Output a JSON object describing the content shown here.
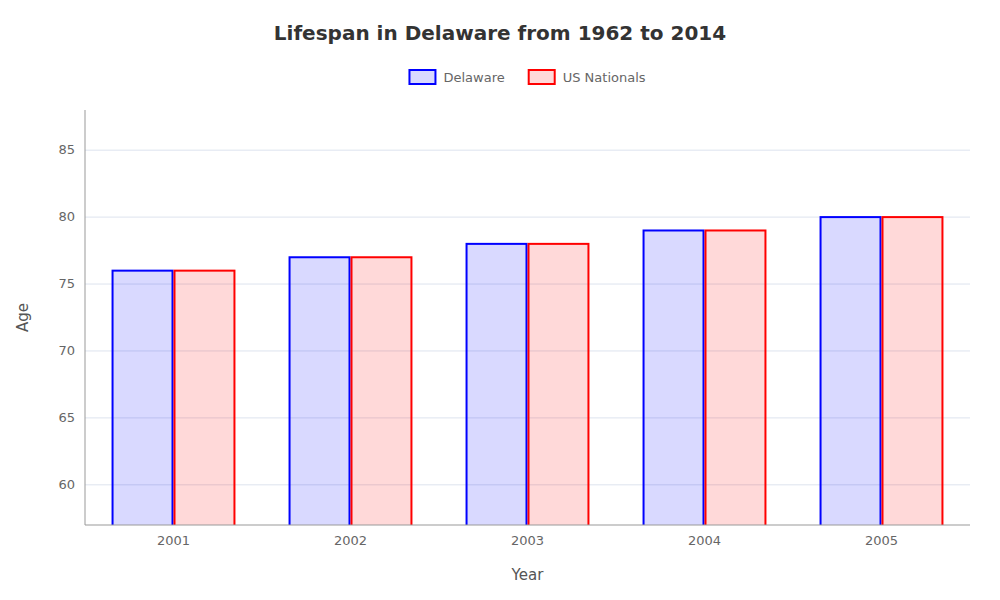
{
  "chart_data": {
    "type": "bar",
    "title": "Lifespan in Delaware from 1962 to 2014",
    "x_label": "Year",
    "y_label": "Age",
    "categories": [
      "2001",
      "2002",
      "2003",
      "2004",
      "2005"
    ],
    "series": [
      {
        "name": "Delaware",
        "color": "#0000ff",
        "values": [
          76.0,
          77.0,
          78.0,
          79.0,
          80.0
        ]
      },
      {
        "name": "US Nationals",
        "color": "#ff0000",
        "values": [
          76.0,
          77.0,
          78.0,
          79.0,
          80.0
        ]
      }
    ],
    "ylim": [
      57,
      88
    ],
    "yticks": [
      60,
      65,
      70,
      75,
      80,
      85
    ],
    "grid": true,
    "legend": "top"
  }
}
